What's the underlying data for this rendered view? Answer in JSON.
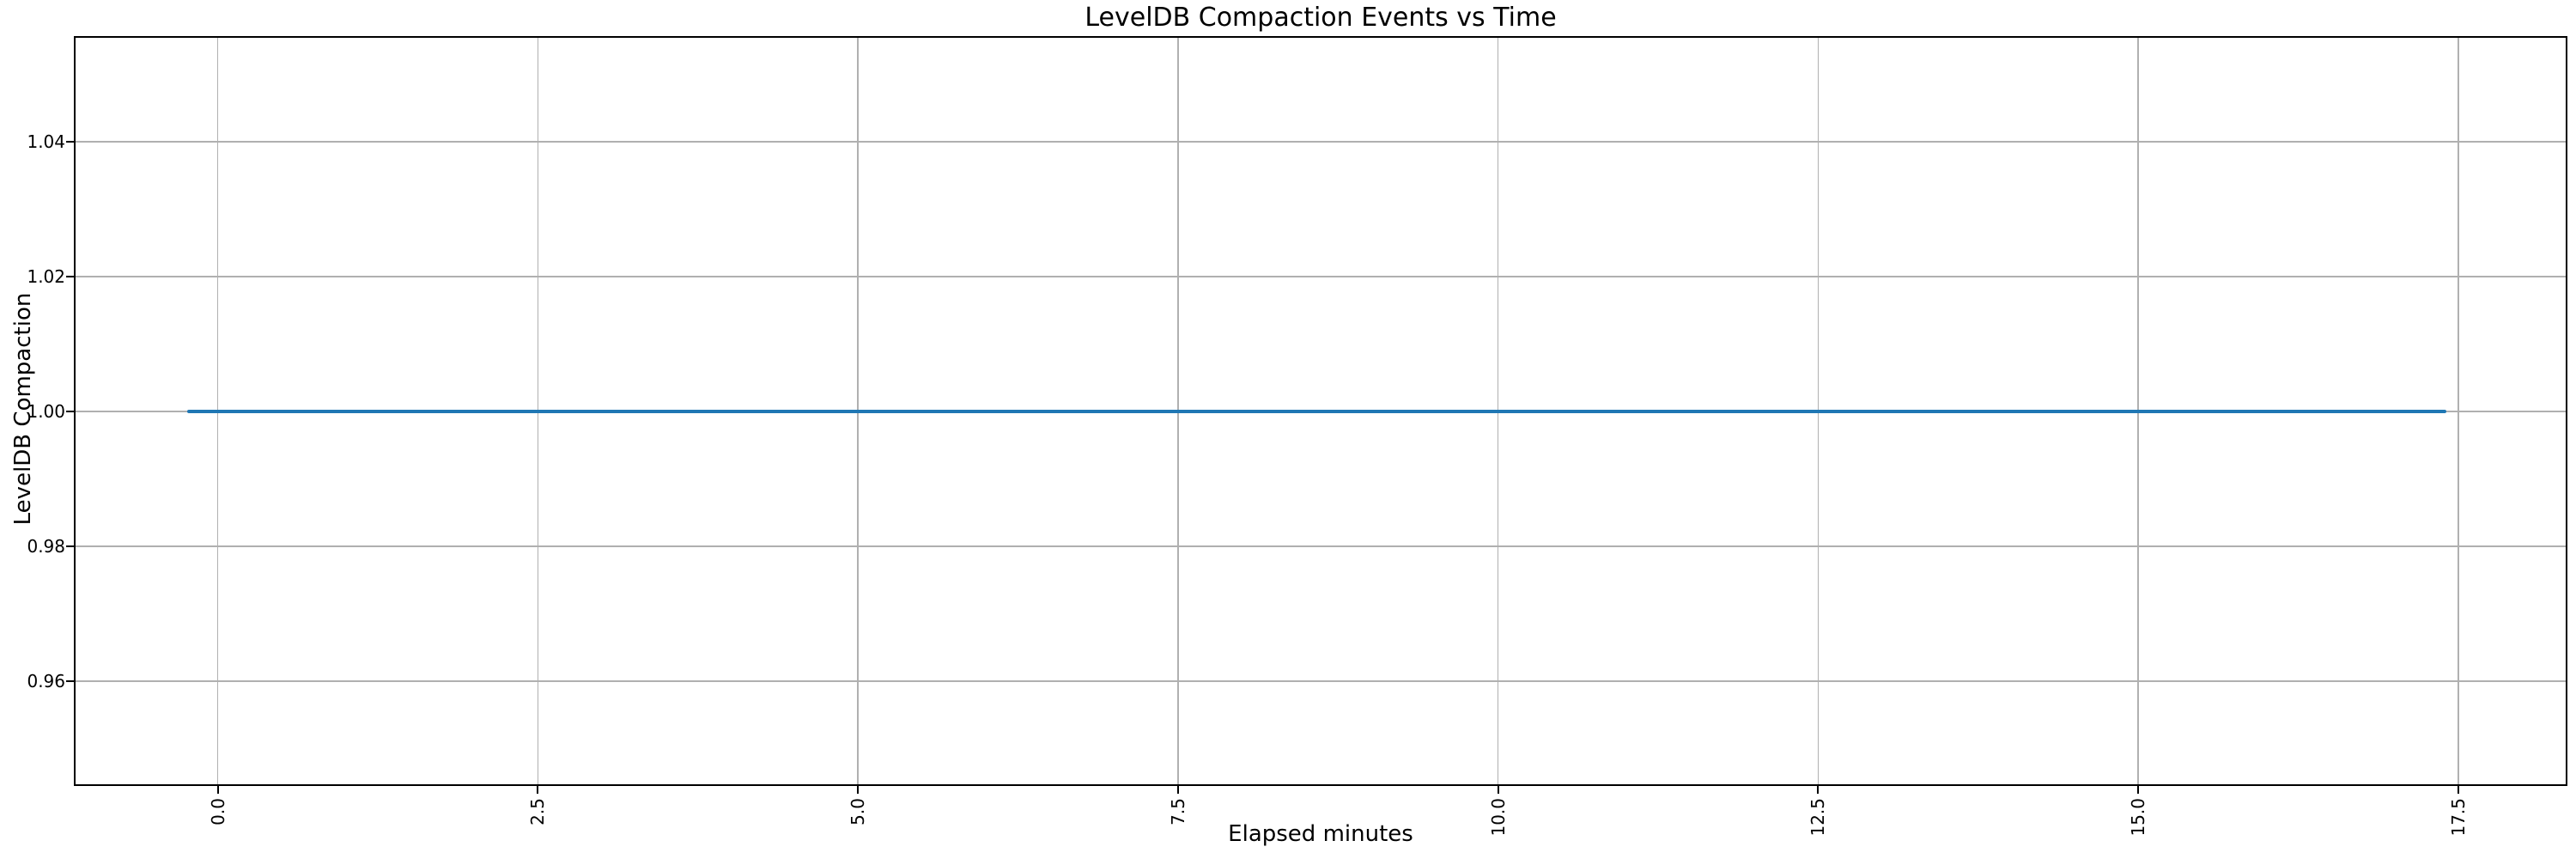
{
  "figure": {
    "title": "LevelDB Compaction Events vs Time",
    "xlabel": "Elapsed minutes",
    "ylabel": "LevelDB Compaction"
  },
  "chart_data": {
    "type": "line",
    "title": "LevelDB Compaction Events vs Time",
    "xlabel": "Elapsed minutes",
    "ylabel": "LevelDB Compaction",
    "series": [
      {
        "name": "LevelDB Compaction",
        "color": "#1f77b4",
        "x": [
          -0.24,
          17.41
        ],
        "y": [
          1.0,
          1.0
        ],
        "note": "flat line, constant value 1.0 across entire x range"
      }
    ],
    "xlim": [
      -1.11,
      18.34
    ],
    "ylim": [
      0.9447,
      1.0554
    ],
    "xticks": [
      0.0,
      2.5,
      5.0,
      7.5,
      10.0,
      12.5,
      15.0,
      17.5
    ],
    "xtick_labels": [
      "0.0",
      "2.5",
      "5.0",
      "7.5",
      "10.0",
      "12.5",
      "15.0",
      "17.5"
    ],
    "xtick_rotation_deg": 90,
    "yticks": [
      0.96,
      0.98,
      1.0,
      1.02,
      1.04
    ],
    "ytick_labels": [
      "0.96",
      "0.98",
      "1.00",
      "1.02",
      "1.04"
    ],
    "grid": true,
    "grid_color": "#b0b0b0",
    "spine_color": "#000000",
    "background_color": "#ffffff",
    "legend": null
  }
}
